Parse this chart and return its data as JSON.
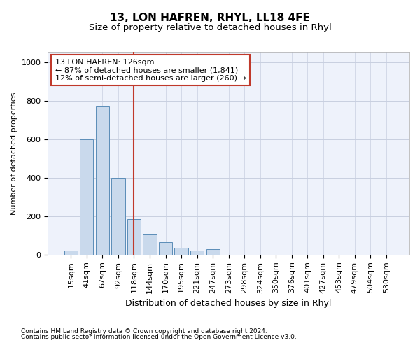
{
  "title": "13, LON HAFREN, RHYL, LL18 4FE",
  "subtitle": "Size of property relative to detached houses in Rhyl",
  "xlabel": "Distribution of detached houses by size in Rhyl",
  "ylabel": "Number of detached properties",
  "footnote1": "Contains HM Land Registry data © Crown copyright and database right 2024.",
  "footnote2": "Contains public sector information licensed under the Open Government Licence v3.0.",
  "annotation_line1": "13 LON HAFREN: 126sqm",
  "annotation_line2": "← 87% of detached houses are smaller (1,841)",
  "annotation_line3": "12% of semi-detached houses are larger (260) →",
  "categories": [
    "15sqm",
    "41sqm",
    "67sqm",
    "92sqm",
    "118sqm",
    "144sqm",
    "170sqm",
    "195sqm",
    "221sqm",
    "247sqm",
    "273sqm",
    "298sqm",
    "324sqm",
    "350sqm",
    "376sqm",
    "401sqm",
    "427sqm",
    "453sqm",
    "479sqm",
    "504sqm",
    "530sqm"
  ],
  "values": [
    20,
    600,
    770,
    400,
    185,
    110,
    65,
    35,
    20,
    30,
    0,
    0,
    0,
    0,
    0,
    0,
    0,
    0,
    0,
    0,
    0
  ],
  "bar_color": "#c9d9ec",
  "bar_edge_color": "#5b8db8",
  "vline_color": "#c0392b",
  "vline_index": 4.5,
  "ylim": [
    0,
    1050
  ],
  "yticks": [
    0,
    200,
    400,
    600,
    800,
    1000
  ],
  "annotation_box_color": "#c0392b",
  "grid_color": "#c8cfe0",
  "bg_color": "#eef2fb",
  "title_fontsize": 11,
  "subtitle_fontsize": 9.5,
  "footnote_fontsize": 6.5,
  "ylabel_fontsize": 8,
  "xlabel_fontsize": 9,
  "tick_fontsize": 8,
  "annot_fontsize": 8
}
